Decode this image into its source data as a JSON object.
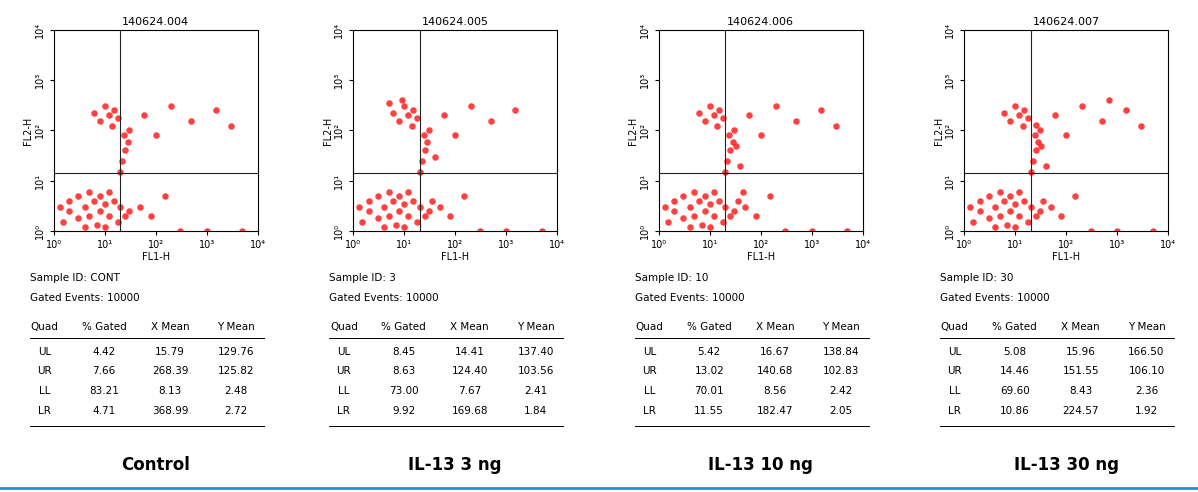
{
  "chart_data": [
    {
      "type": "scatter",
      "title": "140624.004",
      "x_label": "FL1-H",
      "y_label": "FL2-H",
      "log": true,
      "marker": "o",
      "color": "#ff2020",
      "xlim": [
        1,
        10000
      ],
      "ylim": [
        1,
        10000
      ],
      "xticks": [
        {
          "value": 1,
          "label": "10⁰"
        },
        {
          "value": 10,
          "label": "10¹"
        },
        {
          "value": 100,
          "label": "10²"
        },
        {
          "value": 1000,
          "label": "10³"
        },
        {
          "value": 10000,
          "label": "10⁴"
        }
      ],
      "yticks": [
        {
          "value": 1,
          "label": "10⁰"
        },
        {
          "value": 10,
          "label": "10¹"
        },
        {
          "value": 100,
          "label": "10²"
        },
        {
          "value": 1000,
          "label": "10³"
        },
        {
          "value": 10000,
          "label": "10⁴"
        }
      ],
      "quadrant_x": 20,
      "quadrant_y": 14,
      "x": [
        1.5,
        2,
        3,
        4,
        5,
        6,
        8,
        10,
        12,
        15,
        20,
        25,
        3,
        5,
        8,
        12,
        2,
        1.3,
        7,
        18,
        30,
        10,
        4,
        20,
        22,
        25,
        28,
        24,
        30,
        8,
        12,
        15,
        10,
        18,
        6,
        14,
        60,
        200,
        500,
        1500,
        100,
        3000,
        50,
        80,
        150,
        300,
        1000,
        5000
      ],
      "y": [
        1.5,
        2.5,
        1.8,
        3,
        2,
        4,
        2.5,
        3.5,
        2,
        4,
        3,
        2,
        5,
        6,
        5,
        6,
        4,
        3,
        1.3,
        1.5,
        2.5,
        1.2,
        1.2,
        15,
        25,
        40,
        60,
        80,
        100,
        150,
        200,
        250,
        300,
        180,
        220,
        120,
        200,
        300,
        150,
        250,
        80,
        120,
        3,
        2,
        5,
        1,
        1,
        1
      ],
      "sample_id": "Sample ID: CONT",
      "gated_events": "Gated Events: 10000",
      "table": {
        "header": [
          "Quad",
          "% Gated",
          "X Mean",
          "Y Mean"
        ],
        "rows": [
          [
            "UL",
            "4.42",
            "15.79",
            "129.76"
          ],
          [
            "UR",
            "7.66",
            "268.39",
            "125.82"
          ],
          [
            "LL",
            "83.21",
            "8.13",
            "2.48"
          ],
          [
            "LR",
            "4.71",
            "368.99",
            "2.72"
          ]
        ]
      },
      "caption": "Control"
    },
    {
      "type": "scatter",
      "title": "140624.005",
      "x_label": "FL1-H",
      "y_label": "FL2-H",
      "log": true,
      "marker": "o",
      "color": "#ff2020",
      "xlim": [
        1,
        10000
      ],
      "ylim": [
        1,
        10000
      ],
      "xticks": [
        {
          "value": 1,
          "label": "10⁰"
        },
        {
          "value": 10,
          "label": "10¹"
        },
        {
          "value": 100,
          "label": "10²"
        },
        {
          "value": 1000,
          "label": "10³"
        },
        {
          "value": 10000,
          "label": "10⁴"
        }
      ],
      "yticks": [
        {
          "value": 1,
          "label": "10⁰"
        },
        {
          "value": 10,
          "label": "10¹"
        },
        {
          "value": 100,
          "label": "10²"
        },
        {
          "value": 1000,
          "label": "10³"
        },
        {
          "value": 10000,
          "label": "10⁴"
        }
      ],
      "quadrant_x": 20,
      "quadrant_y": 14,
      "x": [
        1.5,
        2,
        3,
        4,
        5,
        6,
        8,
        10,
        12,
        15,
        20,
        25,
        3,
        5,
        8,
        12,
        2,
        1.3,
        7,
        18,
        30,
        10,
        4,
        20,
        22,
        25,
        28,
        24,
        30,
        8,
        12,
        15,
        10,
        18,
        6,
        14,
        5,
        9,
        60,
        200,
        500,
        1500,
        100,
        40,
        50,
        80,
        150,
        35,
        300,
        1000,
        5000
      ],
      "y": [
        1.5,
        2.5,
        1.8,
        3,
        2,
        4,
        2.5,
        3.5,
        2,
        4,
        3,
        2,
        5,
        6,
        5,
        6,
        4,
        3,
        1.3,
        1.5,
        2.5,
        1.2,
        1.2,
        15,
        25,
        40,
        60,
        80,
        100,
        150,
        200,
        250,
        300,
        180,
        220,
        120,
        350,
        400,
        200,
        300,
        150,
        250,
        80,
        30,
        3,
        2,
        5,
        4,
        1,
        1,
        1
      ],
      "sample_id": "Sample ID: 3",
      "gated_events": "Gated Events: 10000",
      "table": {
        "header": [
          "Quad",
          "% Gated",
          "X Mean",
          "Y Mean"
        ],
        "rows": [
          [
            "UL",
            "8.45",
            "14.41",
            "137.40"
          ],
          [
            "UR",
            "8.63",
            "124.40",
            "103.56"
          ],
          [
            "LL",
            "73.00",
            "7.67",
            "2.41"
          ],
          [
            "LR",
            "9.92",
            "169.68",
            "1.84"
          ]
        ]
      },
      "caption": "IL-13 3 ng"
    },
    {
      "type": "scatter",
      "title": "140624.006",
      "x_label": "FL1-H",
      "y_label": "FL2-H",
      "log": true,
      "marker": "o",
      "color": "#ff2020",
      "xlim": [
        1,
        10000
      ],
      "ylim": [
        1,
        10000
      ],
      "xticks": [
        {
          "value": 1,
          "label": "10⁰"
        },
        {
          "value": 10,
          "label": "10¹"
        },
        {
          "value": 100,
          "label": "10²"
        },
        {
          "value": 1000,
          "label": "10³"
        },
        {
          "value": 10000,
          "label": "10⁴"
        }
      ],
      "yticks": [
        {
          "value": 1,
          "label": "10⁰"
        },
        {
          "value": 10,
          "label": "10¹"
        },
        {
          "value": 100,
          "label": "10²"
        },
        {
          "value": 1000,
          "label": "10³"
        },
        {
          "value": 10000,
          "label": "10⁴"
        }
      ],
      "quadrant_x": 20,
      "quadrant_y": 14,
      "x": [
        1.5,
        2,
        3,
        4,
        5,
        6,
        8,
        10,
        12,
        15,
        20,
        25,
        3,
        5,
        8,
        12,
        2,
        1.3,
        7,
        18,
        30,
        10,
        4,
        20,
        22,
        25,
        28,
        24,
        30,
        32,
        8,
        12,
        15,
        10,
        18,
        6,
        14,
        60,
        200,
        500,
        1500,
        100,
        3000,
        40,
        50,
        80,
        150,
        35,
        45,
        300,
        1000,
        5000
      ],
      "y": [
        1.5,
        2.5,
        1.8,
        3,
        2,
        4,
        2.5,
        3.5,
        2,
        4,
        3,
        2,
        5,
        6,
        5,
        6,
        4,
        3,
        1.3,
        1.5,
        2.5,
        1.2,
        1.2,
        15,
        25,
        40,
        60,
        80,
        100,
        50,
        150,
        200,
        250,
        300,
        180,
        220,
        120,
        200,
        300,
        150,
        250,
        80,
        120,
        20,
        3,
        2,
        5,
        4,
        6,
        1,
        1,
        1
      ],
      "sample_id": "Sample ID: 10",
      "gated_events": "Gated Events: 10000",
      "table": {
        "header": [
          "Quad",
          "% Gated",
          "X Mean",
          "Y Mean"
        ],
        "rows": [
          [
            "UL",
            "5.42",
            "16.67",
            "138.84"
          ],
          [
            "UR",
            "13.02",
            "140.68",
            "102.83"
          ],
          [
            "LL",
            "70.01",
            "8.56",
            "2.42"
          ],
          [
            "LR",
            "11.55",
            "182.47",
            "2.05"
          ]
        ]
      },
      "caption": "IL-13 10 ng"
    },
    {
      "type": "scatter",
      "title": "140624.007",
      "x_label": "FL1-H",
      "y_label": "FL2-H",
      "log": true,
      "marker": "o",
      "color": "#ff2020",
      "xlim": [
        1,
        10000
      ],
      "ylim": [
        1,
        10000
      ],
      "xticks": [
        {
          "value": 1,
          "label": "10⁰"
        },
        {
          "value": 10,
          "label": "10¹"
        },
        {
          "value": 100,
          "label": "10²"
        },
        {
          "value": 1000,
          "label": "10³"
        },
        {
          "value": 10000,
          "label": "10⁴"
        }
      ],
      "yticks": [
        {
          "value": 1,
          "label": "10⁰"
        },
        {
          "value": 10,
          "label": "10¹"
        },
        {
          "value": 100,
          "label": "10²"
        },
        {
          "value": 1000,
          "label": "10³"
        },
        {
          "value": 10000,
          "label": "10⁴"
        }
      ],
      "quadrant_x": 20,
      "quadrant_y": 14,
      "x": [
        1.5,
        2,
        3,
        4,
        5,
        6,
        8,
        10,
        12,
        15,
        20,
        25,
        3,
        5,
        8,
        12,
        2,
        1.3,
        7,
        18,
        30,
        10,
        4,
        20,
        22,
        25,
        28,
        24,
        30,
        32,
        26,
        8,
        12,
        15,
        10,
        18,
        6,
        14,
        60,
        200,
        500,
        1500,
        100,
        3000,
        700,
        40,
        50,
        80,
        150,
        35,
        300,
        1000,
        5000
      ],
      "y": [
        1.5,
        2.5,
        1.8,
        3,
        2,
        4,
        2.5,
        3.5,
        2,
        4,
        3,
        2,
        5,
        6,
        5,
        6,
        4,
        3,
        1.3,
        1.5,
        2.5,
        1.2,
        1.2,
        15,
        25,
        40,
        60,
        80,
        100,
        50,
        130,
        150,
        200,
        250,
        300,
        180,
        220,
        120,
        200,
        300,
        150,
        250,
        80,
        120,
        400,
        20,
        3,
        2,
        5,
        4,
        1,
        1,
        1
      ],
      "sample_id": "Sample ID: 30",
      "gated_events": "Gated Events: 10000",
      "table": {
        "header": [
          "Quad",
          "% Gated",
          "X Mean",
          "Y Mean"
        ],
        "rows": [
          [
            "UL",
            "5.08",
            "15.96",
            "166.50"
          ],
          [
            "UR",
            "14.46",
            "151.55",
            "106.10"
          ],
          [
            "LL",
            "69.60",
            "8.43",
            "2.36"
          ],
          [
            "LR",
            "10.86",
            "224.57",
            "1.92"
          ]
        ]
      },
      "caption": "IL-13 30 ng"
    }
  ]
}
